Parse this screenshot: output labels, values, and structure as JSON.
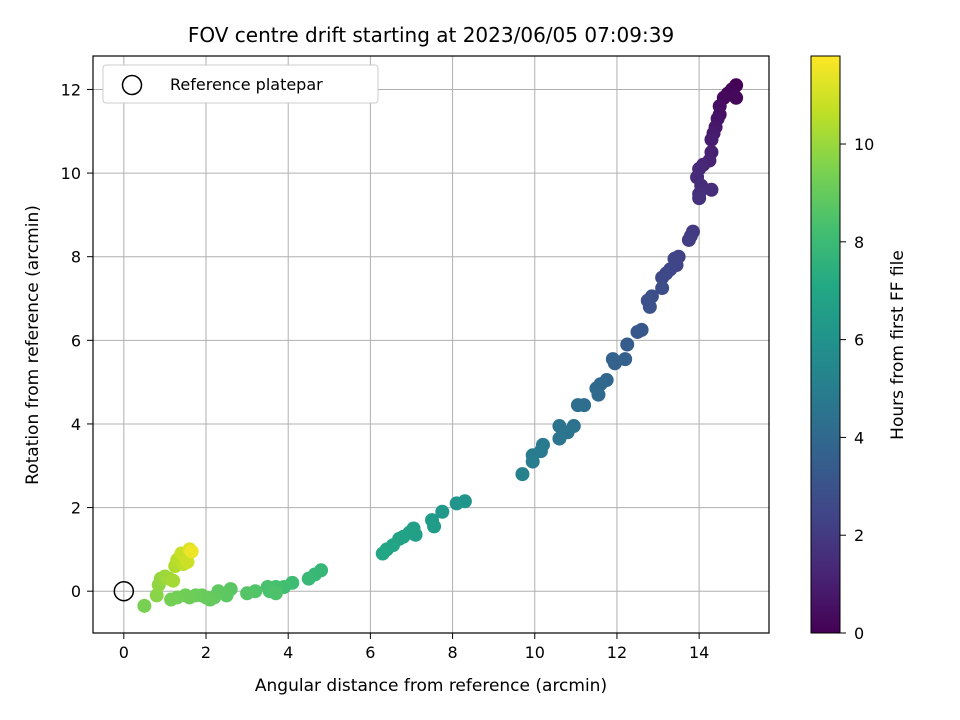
{
  "chart_data": {
    "type": "scatter",
    "title": "FOV centre drift starting at 2023/06/05 07:09:39",
    "xlabel": "Angular distance from reference (arcmin)",
    "ylabel": "Rotation from reference (arcmin)",
    "xlim": [
      -0.75,
      15.7
    ],
    "ylim": [
      -1.0,
      12.8
    ],
    "xticks": [
      0,
      2,
      4,
      6,
      8,
      10,
      12,
      14
    ],
    "yticks": [
      0,
      2,
      4,
      6,
      8,
      10,
      12
    ],
    "grid": true,
    "legend": {
      "placement": "upper-left",
      "entries": [
        "Reference platepar"
      ]
    },
    "reference_point": {
      "x": 0,
      "y": 0
    },
    "colorbar": {
      "label": "Hours from first FF file",
      "ticks": [
        0,
        2,
        4,
        6,
        8,
        10
      ],
      "range": [
        0,
        11.8
      ],
      "colormap": "viridis"
    },
    "points": [
      {
        "x": 14.9,
        "y": 12.1,
        "h": 0.05
      },
      {
        "x": 14.8,
        "y": 12.0,
        "h": 0.1
      },
      {
        "x": 14.7,
        "y": 11.9,
        "h": 0.15
      },
      {
        "x": 14.85,
        "y": 11.85,
        "h": 0.2
      },
      {
        "x": 14.9,
        "y": 11.8,
        "h": 0.25
      },
      {
        "x": 14.6,
        "y": 11.8,
        "h": 0.3
      },
      {
        "x": 14.5,
        "y": 11.6,
        "h": 0.45
      },
      {
        "x": 14.5,
        "y": 11.4,
        "h": 0.55
      },
      {
        "x": 14.45,
        "y": 11.3,
        "h": 0.65
      },
      {
        "x": 14.4,
        "y": 11.1,
        "h": 0.75
      },
      {
        "x": 14.35,
        "y": 10.95,
        "h": 0.85
      },
      {
        "x": 14.3,
        "y": 10.8,
        "h": 0.95
      },
      {
        "x": 14.3,
        "y": 10.5,
        "h": 1.05
      },
      {
        "x": 14.25,
        "y": 10.3,
        "h": 1.15
      },
      {
        "x": 14.1,
        "y": 10.2,
        "h": 1.25
      },
      {
        "x": 14.0,
        "y": 10.1,
        "h": 1.35
      },
      {
        "x": 13.95,
        "y": 9.9,
        "h": 1.45
      },
      {
        "x": 14.05,
        "y": 9.7,
        "h": 1.5
      },
      {
        "x": 14.3,
        "y": 9.6,
        "h": 1.55
      },
      {
        "x": 14.0,
        "y": 9.5,
        "h": 1.6
      },
      {
        "x": 14.0,
        "y": 9.4,
        "h": 1.65
      },
      {
        "x": 13.85,
        "y": 8.6,
        "h": 2.0
      },
      {
        "x": 13.8,
        "y": 8.5,
        "h": 2.05
      },
      {
        "x": 13.75,
        "y": 8.4,
        "h": 2.1
      },
      {
        "x": 13.5,
        "y": 8.0,
        "h": 2.3
      },
      {
        "x": 13.4,
        "y": 7.95,
        "h": 2.35
      },
      {
        "x": 13.45,
        "y": 7.8,
        "h": 2.4
      },
      {
        "x": 13.3,
        "y": 7.7,
        "h": 2.5
      },
      {
        "x": 13.2,
        "y": 7.6,
        "h": 2.55
      },
      {
        "x": 13.1,
        "y": 7.5,
        "h": 2.6
      },
      {
        "x": 13.1,
        "y": 7.25,
        "h": 2.75
      },
      {
        "x": 12.85,
        "y": 7.05,
        "h": 2.85
      },
      {
        "x": 12.75,
        "y": 6.95,
        "h": 2.9
      },
      {
        "x": 12.8,
        "y": 6.8,
        "h": 2.95
      },
      {
        "x": 12.6,
        "y": 6.25,
        "h": 3.2
      },
      {
        "x": 12.5,
        "y": 6.2,
        "h": 3.25
      },
      {
        "x": 12.25,
        "y": 5.9,
        "h": 3.4
      },
      {
        "x": 12.2,
        "y": 5.55,
        "h": 3.6
      },
      {
        "x": 11.9,
        "y": 5.55,
        "h": 3.65
      },
      {
        "x": 11.95,
        "y": 5.45,
        "h": 3.7
      },
      {
        "x": 11.75,
        "y": 5.05,
        "h": 3.9
      },
      {
        "x": 11.6,
        "y": 4.95,
        "h": 3.95
      },
      {
        "x": 11.5,
        "y": 4.85,
        "h": 4.0
      },
      {
        "x": 11.55,
        "y": 4.7,
        "h": 4.05
      },
      {
        "x": 11.2,
        "y": 4.45,
        "h": 4.2
      },
      {
        "x": 11.05,
        "y": 4.45,
        "h": 4.25
      },
      {
        "x": 10.95,
        "y": 3.95,
        "h": 4.45
      },
      {
        "x": 10.6,
        "y": 3.95,
        "h": 4.5
      },
      {
        "x": 10.8,
        "y": 3.8,
        "h": 4.55
      },
      {
        "x": 10.6,
        "y": 3.65,
        "h": 4.6
      },
      {
        "x": 10.2,
        "y": 3.5,
        "h": 4.8
      },
      {
        "x": 10.15,
        "y": 3.35,
        "h": 4.85
      },
      {
        "x": 9.95,
        "y": 3.25,
        "h": 4.9
      },
      {
        "x": 9.95,
        "y": 3.1,
        "h": 4.95
      },
      {
        "x": 9.7,
        "y": 2.8,
        "h": 5.15
      },
      {
        "x": 8.3,
        "y": 2.15,
        "h": 6.05
      },
      {
        "x": 8.1,
        "y": 2.1,
        "h": 6.1
      },
      {
        "x": 7.75,
        "y": 1.9,
        "h": 6.25
      },
      {
        "x": 7.5,
        "y": 1.7,
        "h": 6.4
      },
      {
        "x": 7.55,
        "y": 1.55,
        "h": 6.45
      },
      {
        "x": 7.05,
        "y": 1.5,
        "h": 6.6
      },
      {
        "x": 7.1,
        "y": 1.35,
        "h": 6.65
      },
      {
        "x": 6.95,
        "y": 1.4,
        "h": 6.7
      },
      {
        "x": 6.8,
        "y": 1.3,
        "h": 6.75
      },
      {
        "x": 6.7,
        "y": 1.25,
        "h": 6.8
      },
      {
        "x": 6.55,
        "y": 1.1,
        "h": 6.9
      },
      {
        "x": 6.4,
        "y": 1.0,
        "h": 6.95
      },
      {
        "x": 6.3,
        "y": 0.9,
        "h": 7.0
      },
      {
        "x": 4.8,
        "y": 0.5,
        "h": 7.8
      },
      {
        "x": 4.65,
        "y": 0.4,
        "h": 7.85
      },
      {
        "x": 4.5,
        "y": 0.3,
        "h": 7.9
      },
      {
        "x": 4.1,
        "y": 0.2,
        "h": 8.1
      },
      {
        "x": 3.9,
        "y": 0.1,
        "h": 8.2
      },
      {
        "x": 3.7,
        "y": 0.1,
        "h": 8.3
      },
      {
        "x": 3.5,
        "y": 0.1,
        "h": 8.35
      },
      {
        "x": 3.55,
        "y": 0.0,
        "h": 8.4
      },
      {
        "x": 3.7,
        "y": -0.05,
        "h": 8.45
      },
      {
        "x": 3.2,
        "y": 0.0,
        "h": 8.55
      },
      {
        "x": 3.0,
        "y": -0.05,
        "h": 8.6
      },
      {
        "x": 2.6,
        "y": 0.05,
        "h": 8.75
      },
      {
        "x": 2.5,
        "y": -0.1,
        "h": 8.8
      },
      {
        "x": 2.3,
        "y": 0.0,
        "h": 8.85
      },
      {
        "x": 2.2,
        "y": -0.15,
        "h": 8.9
      },
      {
        "x": 2.1,
        "y": -0.2,
        "h": 8.95
      },
      {
        "x": 2.0,
        "y": -0.15,
        "h": 9.0
      },
      {
        "x": 1.9,
        "y": -0.1,
        "h": 9.05
      },
      {
        "x": 1.75,
        "y": -0.1,
        "h": 9.1
      },
      {
        "x": 1.6,
        "y": -0.15,
        "h": 9.15
      },
      {
        "x": 1.5,
        "y": -0.1,
        "h": 9.2
      },
      {
        "x": 1.3,
        "y": -0.15,
        "h": 9.25
      },
      {
        "x": 1.15,
        "y": -0.2,
        "h": 9.3
      },
      {
        "x": 0.5,
        "y": -0.35,
        "h": 9.4
      },
      {
        "x": 0.8,
        "y": -0.1,
        "h": 9.7
      },
      {
        "x": 0.85,
        "y": 0.15,
        "h": 9.8
      },
      {
        "x": 0.9,
        "y": 0.3,
        "h": 9.9
      },
      {
        "x": 1.0,
        "y": 0.35,
        "h": 10.0
      },
      {
        "x": 1.1,
        "y": 0.3,
        "h": 10.1
      },
      {
        "x": 1.2,
        "y": 0.25,
        "h": 10.2
      },
      {
        "x": 1.25,
        "y": 0.6,
        "h": 10.4
      },
      {
        "x": 1.3,
        "y": 0.75,
        "h": 10.5
      },
      {
        "x": 1.45,
        "y": 0.65,
        "h": 10.6
      },
      {
        "x": 1.5,
        "y": 0.8,
        "h": 10.7
      },
      {
        "x": 1.4,
        "y": 0.9,
        "h": 10.8
      },
      {
        "x": 1.55,
        "y": 0.7,
        "h": 10.9
      },
      {
        "x": 1.6,
        "y": 1.0,
        "h": 11.2
      },
      {
        "x": 1.65,
        "y": 0.95,
        "h": 11.5
      }
    ]
  }
}
